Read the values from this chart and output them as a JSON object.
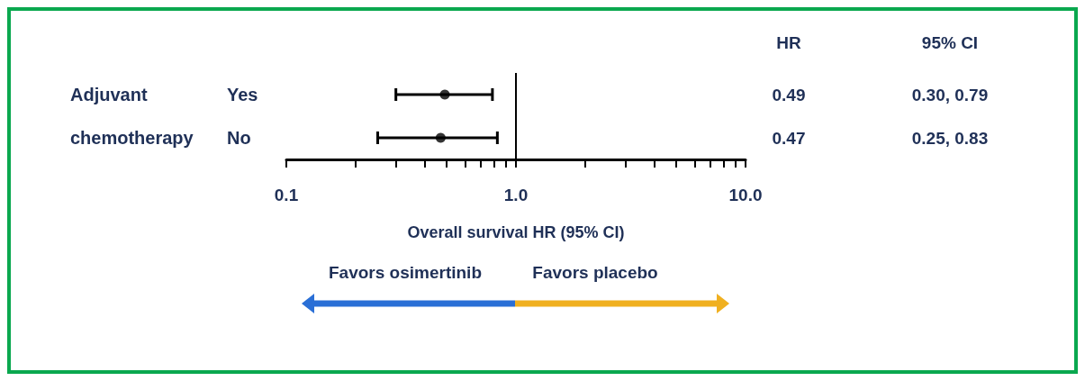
{
  "chart_data": {
    "type": "scatter",
    "orientation": "horizontal",
    "xlabel": "Overall survival HR (95% CI)",
    "categories": [
      "Yes",
      "No"
    ],
    "series": [
      {
        "color": "#000000",
        "values": [
          0.49,
          0.47
        ],
        "errors": [
          [
            0.3,
            0.79
          ],
          [
            0.25,
            0.83
          ]
        ],
        "value_labels": [
          "0.49",
          "0.47"
        ]
      }
    ],
    "xlim": [
      0.1,
      10
    ],
    "log": "x",
    "xticks": [
      {
        "value": 0.1,
        "label": "0.1"
      },
      {
        "value": 0.2,
        "label": null
      },
      {
        "value": 0.3,
        "label": null
      },
      {
        "value": 0.4,
        "label": null
      },
      {
        "value": 0.5,
        "label": null
      },
      {
        "value": 0.6,
        "label": null
      },
      {
        "value": 0.7,
        "label": null
      },
      {
        "value": 0.8,
        "label": null
      },
      {
        "value": 0.9,
        "label": null
      },
      {
        "value": 1,
        "label": "1.0"
      },
      {
        "value": 2,
        "label": null
      },
      {
        "value": 3,
        "label": null
      },
      {
        "value": 4,
        "label": null
      },
      {
        "value": 5,
        "label": null
      },
      {
        "value": 6,
        "label": null
      },
      {
        "value": 7,
        "label": null
      },
      {
        "value": 8,
        "label": null
      },
      {
        "value": 9,
        "label": null
      },
      {
        "value": 10,
        "label": "10.0"
      }
    ],
    "ref_lines": [
      {
        "axis": "x",
        "value": 1,
        "color": "#000000",
        "line_style": "solid"
      }
    ],
    "marker": "circle",
    "grid": false,
    "annotations": [
      "Adjuvant chemotherapy",
      "HR",
      "95% CI",
      "0.30, 0.79",
      "0.25, 0.83",
      "Favors osimertinib",
      "Favors placebo"
    ]
  }
}
